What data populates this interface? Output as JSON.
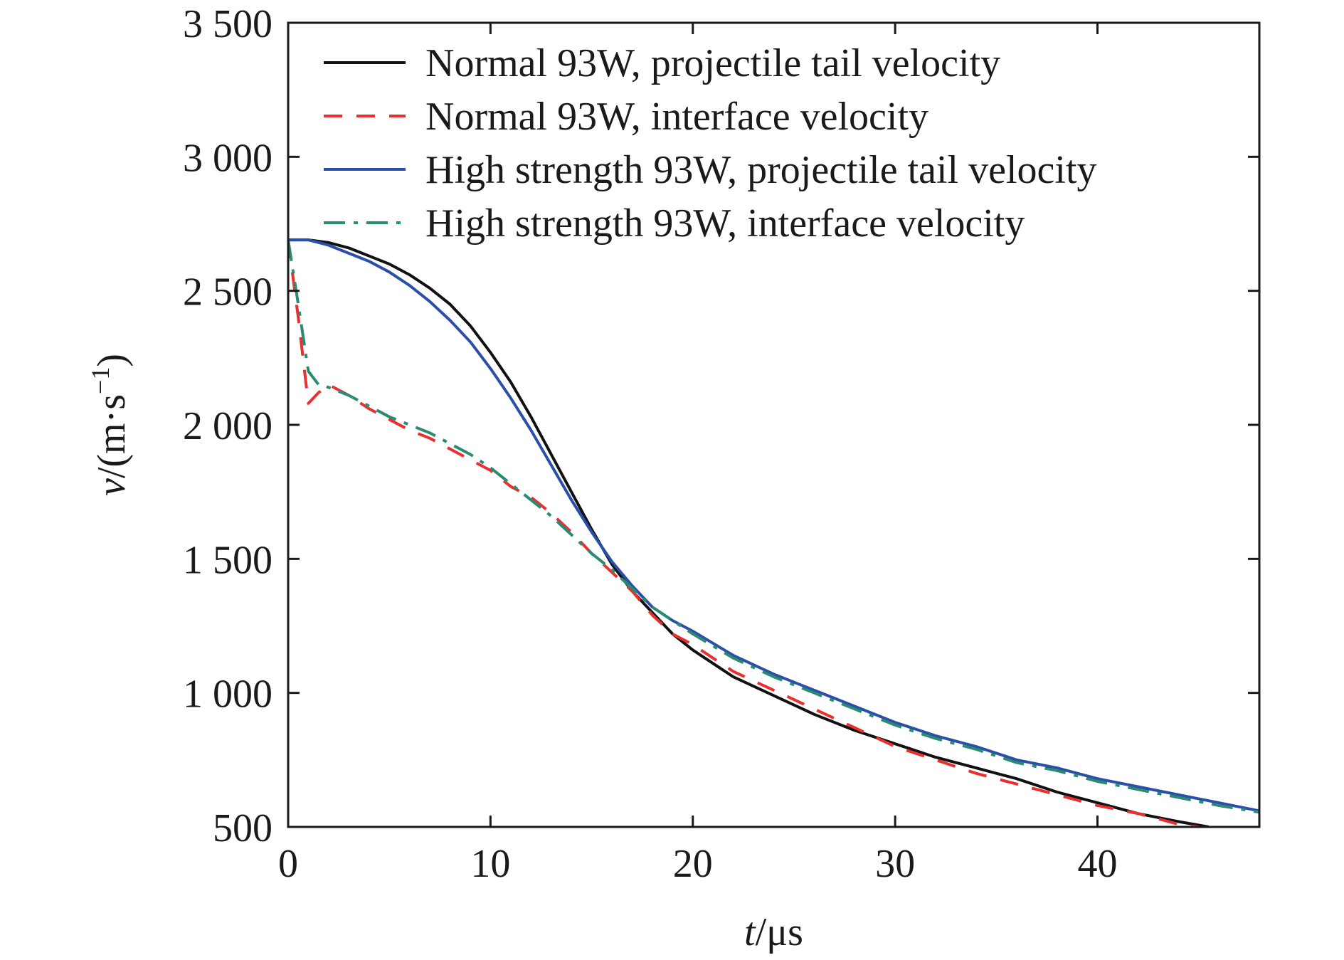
{
  "chart_data": {
    "type": "line",
    "xlabel_var": "t",
    "xlabel_unit": "/μs",
    "ylabel_var": "v",
    "ylabel_unit": "/(m·s",
    "ylabel_sup": "−1",
    "ylabel_close": ")",
    "xlim": [
      0,
      48
    ],
    "ylim": [
      500,
      3500
    ],
    "x_ticks": [
      0,
      10,
      20,
      30,
      40
    ],
    "x_tick_labels": [
      "0",
      "10",
      "20",
      "30",
      "40"
    ],
    "y_ticks": [
      500,
      1000,
      1500,
      2000,
      2500,
      3000,
      3500
    ],
    "y_tick_labels": [
      "500",
      "1 000",
      "1 500",
      "2 000",
      "2 500",
      "3 000",
      "3 500"
    ],
    "grid": false,
    "legend_position": "top-right",
    "series": [
      {
        "name": "Normal 93W, projectile tail velocity",
        "color": "#111111",
        "dash": "solid",
        "x": [
          0,
          1,
          2,
          3,
          4,
          5,
          6,
          7,
          8,
          9,
          10,
          11,
          12,
          13,
          14,
          15,
          16,
          17,
          18,
          19,
          20,
          22,
          24,
          26,
          28,
          30,
          32,
          34,
          36,
          38,
          40,
          42,
          44,
          45.5
        ],
        "y": [
          2690,
          2690,
          2680,
          2660,
          2630,
          2600,
          2560,
          2510,
          2450,
          2370,
          2270,
          2160,
          2030,
          1890,
          1750,
          1610,
          1480,
          1380,
          1300,
          1220,
          1160,
          1060,
          990,
          920,
          860,
          810,
          760,
          720,
          680,
          630,
          590,
          550,
          520,
          500
        ]
      },
      {
        "name": "Normal 93W, interface velocity",
        "color": "#e8302f",
        "dash": "dashed",
        "x": [
          0,
          0.5,
          1,
          1.5,
          2,
          3,
          4,
          5,
          6,
          7,
          8,
          9,
          10,
          11,
          12,
          13,
          14,
          15,
          16,
          17,
          18,
          19,
          20,
          22,
          24,
          26,
          28,
          30,
          32,
          34,
          36,
          38,
          40,
          42,
          44,
          45
        ],
        "y": [
          2690,
          2400,
          2080,
          2120,
          2150,
          2110,
          2060,
          2020,
          1980,
          1950,
          1910,
          1870,
          1830,
          1770,
          1730,
          1670,
          1600,
          1520,
          1450,
          1380,
          1290,
          1220,
          1180,
          1080,
          1010,
          940,
          870,
          800,
          750,
          700,
          660,
          620,
          580,
          550,
          510,
          500
        ]
      },
      {
        "name": "High strength 93W, projectile tail velocity",
        "color": "#2a4fa8",
        "dash": "solid",
        "x": [
          0,
          1,
          2,
          3,
          4,
          5,
          6,
          7,
          8,
          9,
          10,
          11,
          12,
          13,
          14,
          15,
          16,
          17,
          18,
          19,
          20,
          22,
          24,
          26,
          28,
          30,
          32,
          34,
          36,
          38,
          40,
          42,
          44,
          46,
          48
        ],
        "y": [
          2690,
          2690,
          2670,
          2640,
          2610,
          2570,
          2520,
          2460,
          2390,
          2310,
          2210,
          2100,
          1980,
          1850,
          1720,
          1600,
          1490,
          1400,
          1320,
          1270,
          1230,
          1140,
          1070,
          1010,
          950,
          890,
          840,
          800,
          750,
          720,
          680,
          650,
          620,
          590,
          560
        ]
      },
      {
        "name": "High strength 93W, interface velocity",
        "color": "#2a8a72",
        "dash": "dashdot",
        "x": [
          0,
          0.5,
          1,
          1.5,
          2,
          3,
          4,
          5,
          6,
          7,
          8,
          9,
          10,
          11,
          12,
          13,
          14,
          15,
          16,
          17,
          18,
          19,
          20,
          22,
          24,
          26,
          28,
          30,
          32,
          34,
          36,
          38,
          40,
          42,
          44,
          46,
          48
        ],
        "y": [
          2690,
          2450,
          2200,
          2150,
          2140,
          2110,
          2070,
          2030,
          2000,
          1970,
          1930,
          1890,
          1840,
          1780,
          1720,
          1660,
          1590,
          1520,
          1460,
          1390,
          1320,
          1270,
          1220,
          1130,
          1060,
          1000,
          940,
          880,
          830,
          790,
          740,
          710,
          670,
          640,
          610,
          580,
          555
        ]
      }
    ]
  }
}
